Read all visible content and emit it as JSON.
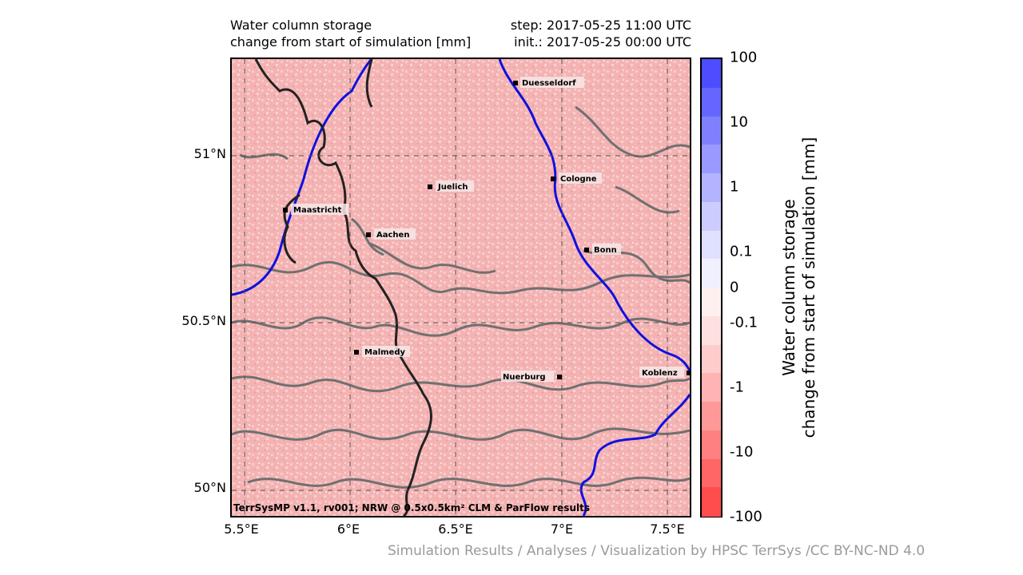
{
  "title": {
    "line1": "Water column storage",
    "line2": "change from start of simulation [mm]"
  },
  "step": {
    "line1": "step: 2017-05-25 11:00 UTC",
    "line2": "init.: 2017-05-25 00:00 UTC"
  },
  "lat_ticks": [
    "51°N",
    "50.5°N",
    "50°N"
  ],
  "lon_ticks": [
    "5.5°E",
    "6°E",
    "6.5°E",
    "7°E",
    "7.5°E"
  ],
  "cities": [
    {
      "name": "Duesseldorf"
    },
    {
      "name": "Juelich"
    },
    {
      "name": "Cologne"
    },
    {
      "name": "Maastricht"
    },
    {
      "name": "Aachen"
    },
    {
      "name": "Bonn"
    },
    {
      "name": "Malmedy"
    },
    {
      "name": "Nuerburg"
    },
    {
      "name": "Koblenz"
    }
  ],
  "map_footer": "TerrSysMP v1.1, rv001; NRW @ 0.5x0.5km² CLM & ParFlow results",
  "colorbar": {
    "title_line1": "Water column storage",
    "title_line2": "change from start of simulation [mm]",
    "labels": [
      "100",
      "10",
      "1",
      "0.1",
      "0",
      "-0.1",
      "-1",
      "-10",
      "-100"
    ],
    "colors": [
      "#4d4dff",
      "#6666ff",
      "#8080ff",
      "#9999ff",
      "#b3b3ff",
      "#ccccff",
      "#e0e0ff",
      "#f0f0ff",
      "#fff0f0",
      "#ffe0e0",
      "#ffcccc",
      "#ffb3b3",
      "#ff9999",
      "#ff8080",
      "#ff6666",
      "#ff4d4d"
    ],
    "map_fill": "#f4b3b3"
  },
  "credit": "Simulation Results / Analyses / Visualization by HPSC TerrSys /CC BY-NC-ND 4.0"
}
